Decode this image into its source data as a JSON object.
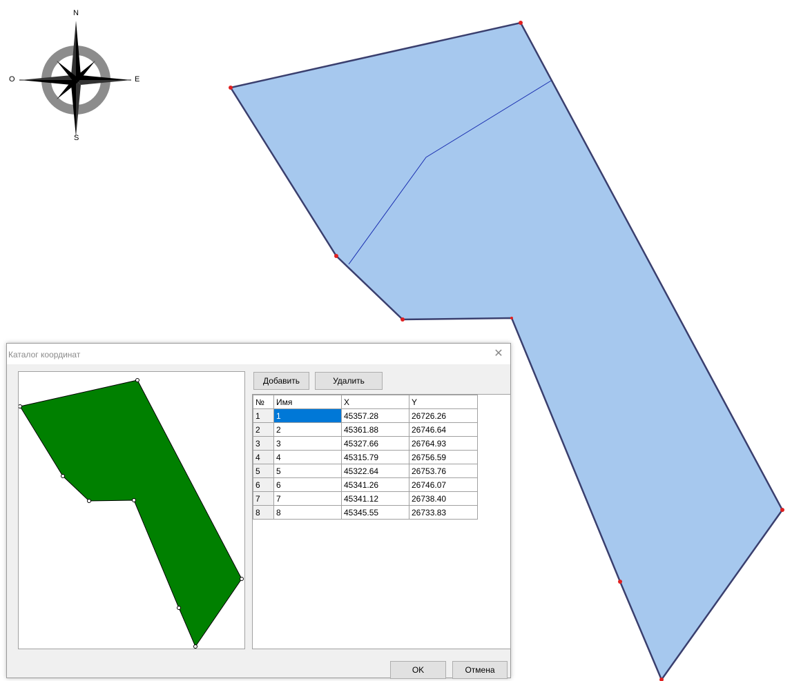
{
  "compass": {
    "n": "N",
    "s": "S",
    "e": "E",
    "w": "O"
  },
  "dialog": {
    "title": "Каталог координат",
    "add_label": "Добавить",
    "delete_label": "Удалить",
    "ok_label": "OK",
    "cancel_label": "Отмена",
    "close_glyph": "✕",
    "table": {
      "headers": [
        "№",
        "Имя",
        "X",
        "Y"
      ],
      "rows": [
        [
          "1",
          "1",
          "45357.28",
          "26726.26"
        ],
        [
          "2",
          "2",
          "45361.88",
          "26746.64"
        ],
        [
          "3",
          "3",
          "45327.66",
          "26764.93"
        ],
        [
          "4",
          "4",
          "45315.79",
          "26756.59"
        ],
        [
          "5",
          "5",
          "45322.64",
          "26753.76"
        ],
        [
          "6",
          "6",
          "45341.26",
          "26746.07"
        ],
        [
          "7",
          "7",
          "45341.12",
          "26738.40"
        ],
        [
          "8",
          "8",
          "45345.55",
          "26733.83"
        ]
      ]
    }
  },
  "colors": {
    "parcel_fill": "#a6c8ee",
    "parcel_outline": "#3a3f6e",
    "split_line": "#1a2fb0",
    "vertex_marker": "#e02020",
    "preview_fill": "#008000",
    "selection": "#0078d7"
  }
}
